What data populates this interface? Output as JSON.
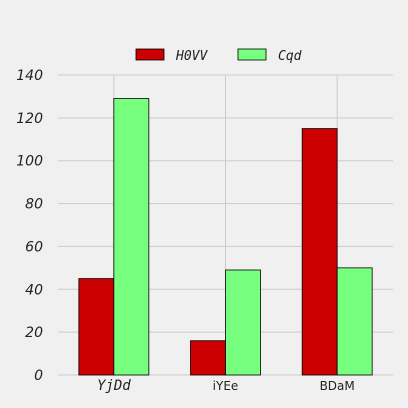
{
  "chart_data": {
    "type": "bar",
    "categories": [
      "YjDd",
      "iYEe",
      "BDaM"
    ],
    "series": [
      {
        "name": "H0VV",
        "values": [
          45,
          16,
          115
        ],
        "color": "#cc0000"
      },
      {
        "name": "Cqd",
        "values": [
          129,
          49,
          50
        ],
        "color": "#77ff7f"
      }
    ],
    "ylim": [
      0,
      140
    ],
    "yticks": [
      0,
      20,
      40,
      60,
      80,
      100,
      120,
      140
    ],
    "grid": true,
    "legend_position": "top-center",
    "title": "",
    "xlabel": "",
    "ylabel": ""
  }
}
